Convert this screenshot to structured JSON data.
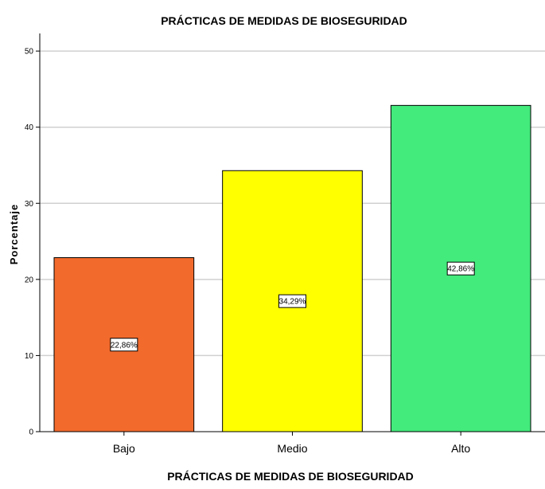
{
  "chart_data": {
    "type": "bar",
    "title": "PRÁCTICAS DE MEDIDAS DE BIOSEGURIDAD",
    "xlabel": "PRÁCTICAS DE MEDIDAS DE BIOSEGURIDAD",
    "ylabel": "Porcentaje",
    "categories": [
      "Bajo",
      "Medio",
      "Alto"
    ],
    "values": [
      22.86,
      34.29,
      42.86
    ],
    "data_labels": [
      "22,86%",
      "34,29%",
      "42,86%"
    ],
    "colors": [
      "#f26a2c",
      "#ffff00",
      "#43ea7c"
    ],
    "ylim": [
      0,
      52
    ],
    "yticks": [
      0,
      10,
      20,
      30,
      40,
      50
    ],
    "ytick_labels": [
      "0",
      "10",
      "20",
      "30",
      "40",
      "50"
    ],
    "grid": true
  }
}
